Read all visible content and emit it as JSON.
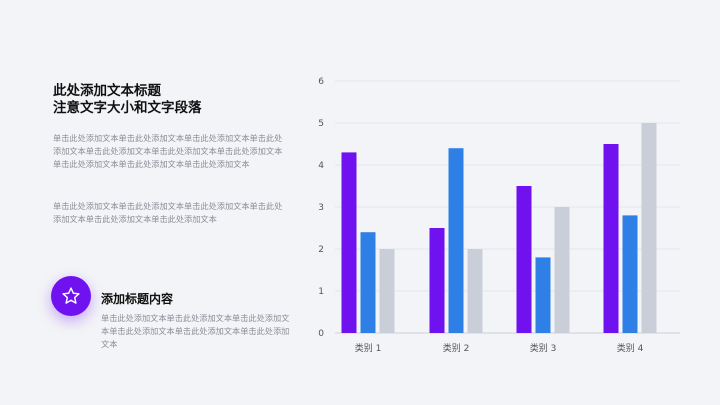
{
  "left": {
    "title_line1": "此处添加文本标题",
    "title_line2": "注意文字大小和文字段落",
    "para1": "单击此处添加文本单击此处添加文本单击此处添加文本单击此处添加文本单击此处添加文本单击此处添加文本单击此处添加文本单击此处添加文本单击此处添加文本单击此处添加文本",
    "para2": "单击此处添加文本单击此处添加文本单击此处添加文本单击此处添加文本单击此处添加文本单击此处添加文本"
  },
  "feature": {
    "icon": "star-icon",
    "title": "添加标题内容",
    "text": "单击此处添加文本单击此处添加文本单击此处添加文本单击此处添加文本单击此处添加文本单击此处添加文本"
  },
  "colors": {
    "purple": "#7011f0",
    "blue": "#2f80e6",
    "gray": "#c9ced8",
    "accent": "#7011f0"
  },
  "chart_data": {
    "type": "bar",
    "categories": [
      "类别 1",
      "类别 2",
      "类别 3",
      "类别 4"
    ],
    "series": [
      {
        "values": [
          4.3,
          2.5,
          3.5,
          4.5
        ],
        "color": "#7011f0"
      },
      {
        "values": [
          2.4,
          4.4,
          1.8,
          2.8
        ],
        "color": "#2f80e6"
      },
      {
        "values": [
          2.0,
          2.0,
          3.0,
          5.0
        ],
        "color": "#c9ced8"
      }
    ],
    "ylim": [
      0,
      6
    ],
    "yticks": [
      "0",
      "1",
      "2",
      "3",
      "4",
      "5",
      "6"
    ],
    "grid": true,
    "legend": "none"
  }
}
